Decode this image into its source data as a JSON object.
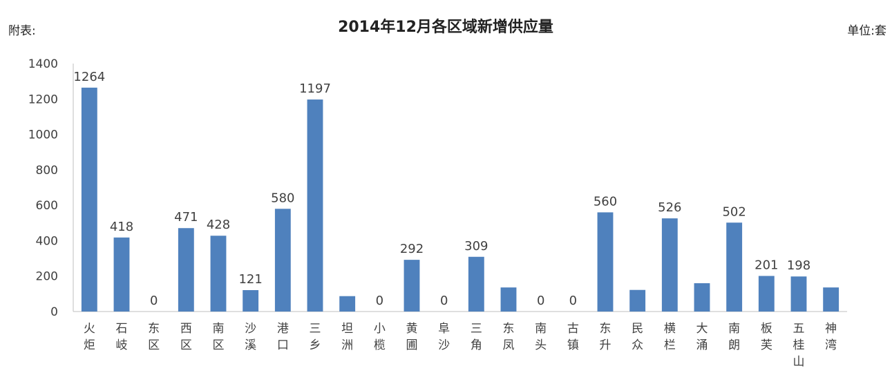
{
  "chart_data": {
    "type": "bar",
    "title": "2014年12月各区域新增供应量",
    "header_left": "附表:",
    "header_right": "单位:套",
    "xlabel": "",
    "ylabel": "",
    "ylim": [
      0,
      1400
    ],
    "yticks": [
      0,
      200,
      400,
      600,
      800,
      1000,
      1200,
      1400
    ],
    "grid": false,
    "categories": [
      "火炬",
      "石岐",
      "东区",
      "西区",
      "南区",
      "沙溪",
      "港口",
      "三乡",
      "坦洲",
      "小榄",
      "黄圃",
      "阜沙",
      "三角",
      "东凤",
      "南头",
      "古镇",
      "东升",
      "民众",
      "横栏",
      "大涌",
      "南朗",
      "板芙",
      "五桂山",
      "神湾"
    ],
    "values": [
      1264,
      418,
      0,
      471,
      428,
      121,
      580,
      1197,
      87,
      0,
      292,
      0,
      309,
      136,
      0,
      0,
      560,
      122,
      526,
      160,
      502,
      201,
      198,
      136
    ],
    "data_labels": [
      "1264",
      "418",
      "0",
      "471",
      "428",
      "121",
      "580",
      "1197",
      "",
      "0",
      "292",
      "0",
      "309",
      "",
      "0",
      "0",
      "560",
      "",
      "526",
      "",
      "502",
      "201",
      "198",
      ""
    ],
    "colors": {
      "bar": "#4f81bd"
    }
  }
}
